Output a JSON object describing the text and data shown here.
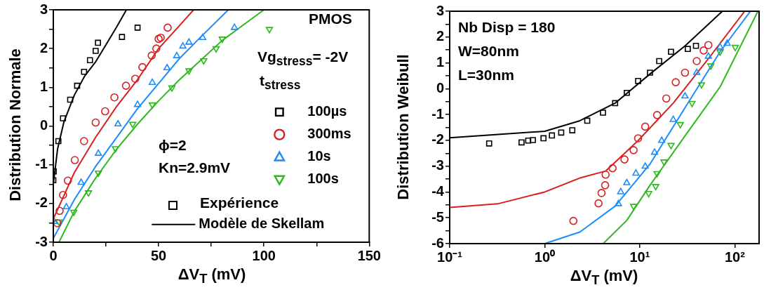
{
  "chart_data": [
    {
      "type": "scatter",
      "xlabel": "ΔV$_{T}$ (mV)",
      "ylabel": "Distribution Normale",
      "legend": "right",
      "legend_title": "t$_{stress}$",
      "annotations": [
        "PMOS",
        "Vg$_{stress}$= -2V",
        "ϕ=2",
        "Kn=2.9mV",
        "Expérience"
      ],
      "xlim": [
        0,
        150
      ],
      "ylim": [
        -3,
        3
      ],
      "xticks": [
        0,
        {
          "value": 25,
          "label": null
        },
        50,
        {
          "value": 75,
          "label": null
        },
        100,
        {
          "value": 125,
          "label": null
        },
        150
      ],
      "yticks": [
        -3,
        {
          "value": -2.5,
          "label": null
        },
        -2,
        {
          "value": -1.5,
          "label": null
        },
        -1,
        {
          "value": -0.5,
          "label": null
        },
        0,
        {
          "value": 0.5,
          "label": null
        },
        1,
        {
          "value": 1.5,
          "label": null
        },
        2,
        {
          "value": 2.5,
          "label": null
        },
        3
      ],
      "series": [
        {
          "name": "100µs",
          "type": "scatter",
          "marker": "square",
          "color": "#000000",
          "x": [
            0,
            0.2,
            2.4,
            4.6,
            8.0,
            11.3,
            14.6,
            17.4,
            20.1,
            21.2,
            32.6,
            40
          ],
          "values": [
            -1.4,
            -1.17,
            -0.39,
            0.2,
            0.68,
            1.04,
            1.4,
            1.7,
            1.94,
            2.15,
            2.3,
            2.54
          ]
        },
        {
          "name": "300ms",
          "type": "scatter",
          "marker": "circle",
          "color": "#d42020",
          "x": [
            1.9,
            3.0,
            4.6,
            6.9,
            10.2,
            14.6,
            20.1,
            24.6,
            29,
            34.5,
            38.9,
            42.3,
            46.7,
            48.9,
            50,
            51,
            54.3
          ],
          "values": [
            -2.51,
            -2.19,
            -1.78,
            -1.41,
            -0.88,
            -0.39,
            0.09,
            0.38,
            0.74,
            1.04,
            1.22,
            1.52,
            1.82,
            2.0,
            2.25,
            2.28,
            2.54
          ]
        },
        {
          "name": "10s",
          "type": "scatter",
          "marker": "triangle",
          "color": "#1a8cff",
          "x": [
            0.4,
            6.2,
            13.2,
            21.4,
            30.7,
            40,
            47,
            54,
            58.6,
            61.5,
            64.4,
            70.9,
            86
          ],
          "values": [
            -2.47,
            -2.09,
            -1.46,
            -0.71,
            0.05,
            0.55,
            1.12,
            1.5,
            1.81,
            2.06,
            2.16,
            2.28,
            2.54
          ]
        },
        {
          "name": "100s",
          "type": "scatter",
          "marker": "triangle-down",
          "color": "#2db81e",
          "x": [
            2.7,
            9.7,
            16.7,
            21.4,
            29.5,
            37.7,
            47,
            56.3,
            64.4,
            71.4,
            77.3,
            80.2,
            102.6
          ],
          "values": [
            -2.47,
            -2.22,
            -1.72,
            -1.21,
            -0.58,
            0.05,
            0.55,
            0.99,
            1.43,
            1.69,
            2.0,
            2.25,
            2.5
          ]
        },
        {
          "name": "Modèle de Skellam",
          "type": "line",
          "color": "#000000",
          "x": [
            0,
            2,
            5,
            10,
            15,
            20,
            25,
            30,
            34.7
          ],
          "values": [
            -1.5,
            -0.6,
            0.1,
            0.8,
            1.3,
            1.65,
            2.1,
            2.55,
            3
          ]
        },
        {
          "type": "line",
          "color": "#d42020",
          "x": [
            0,
            10,
            20,
            30,
            40,
            50,
            60,
            66.6
          ],
          "values": [
            -2.4,
            -1.2,
            -0.3,
            0.5,
            1.2,
            2.0,
            2.6,
            3
          ]
        },
        {
          "type": "line",
          "color": "#1a8cff",
          "x": [
            0,
            10,
            20,
            30,
            40,
            50,
            60,
            70,
            83.1
          ],
          "values": [
            -2.9,
            -1.9,
            -1.05,
            -0.3,
            0.45,
            1.1,
            1.75,
            2.3,
            3
          ]
        },
        {
          "type": "line",
          "color": "#2db81e",
          "x": [
            2.7,
            10,
            20,
            30,
            40,
            50,
            60,
            70,
            80,
            90,
            100
          ],
          "values": [
            -3,
            -2.2,
            -1.35,
            -0.6,
            0.05,
            0.65,
            1.2,
            1.7,
            2.2,
            2.6,
            3
          ]
        }
      ]
    },
    {
      "type": "scatter",
      "xlabel": "ΔV$_{T}$ (mV)",
      "ylabel": "Distribution Weibull",
      "log": "x",
      "annotations": [
        "Nb Disp = 180",
        "W=80nm",
        "L=30nm"
      ],
      "xlim": [
        0.1,
        180
      ],
      "ylim": [
        -6,
        3
      ],
      "xticks": [
        {
          "value": 0.1,
          "label": "10⁻¹"
        },
        {
          "value": 1,
          "label": "10⁰"
        },
        {
          "value": 10,
          "label": "10¹"
        },
        {
          "value": 100,
          "label": "10²"
        }
      ],
      "yticks": [
        -6,
        {
          "value": -5.5,
          "label": null
        },
        -5,
        {
          "value": -4.5,
          "label": null
        },
        -4,
        {
          "value": -3.5,
          "label": null
        },
        -3,
        {
          "value": -2.5,
          "label": null
        },
        -2,
        {
          "value": -1.5,
          "label": null
        },
        -1,
        {
          "value": -0.5,
          "label": null
        },
        0,
        {
          "value": 0.5,
          "label": null
        },
        1,
        {
          "value": 1.5,
          "label": null
        },
        2,
        {
          "value": 2.5,
          "label": null
        },
        3
      ],
      "series": [
        {
          "type": "scatter",
          "marker": "square",
          "color": "#000000",
          "x": [
            0.26,
            0.57,
            0.67,
            0.75,
            0.97,
            1.19,
            1.49,
            1.95,
            2.8,
            4.1,
            5.5,
            7.3,
            9.6,
            12.8,
            16,
            21.3,
            32,
            39
          ],
          "values": [
            -2.12,
            -2.08,
            -2.01,
            -1.99,
            -1.92,
            -1.81,
            -1.7,
            -1.61,
            -1.24,
            -0.93,
            -0.56,
            -0.16,
            0.3,
            0.62,
            1.07,
            1.43,
            1.54,
            1.66
          ]
        },
        {
          "type": "scatter",
          "marker": "circle",
          "color": "#d42020",
          "x": [
            2.0,
            3.68,
            3.96,
            4.32,
            4.37,
            5.17,
            6.9,
            8.6,
            9.6,
            11.4,
            15.2,
            19,
            23.9,
            29.9,
            39.7,
            47,
            52.7
          ],
          "values": [
            -5.12,
            -4.44,
            -4.04,
            -3.74,
            -3.33,
            -3.08,
            -2.74,
            -2.38,
            -1.92,
            -1.47,
            -1.02,
            -0.38,
            0.25,
            0.62,
            1.07,
            1.48,
            1.69
          ]
        },
        {
          "type": "scatter",
          "marker": "triangle",
          "color": "#1a8cff",
          "x": [
            5.96,
            6.3,
            7.3,
            9.1,
            11.4,
            14.3,
            17,
            22.5,
            29.9,
            39.7,
            52.7,
            70,
            83
          ],
          "values": [
            -4.46,
            -4.0,
            -3.65,
            -3.28,
            -3.01,
            -2.47,
            -2.01,
            -1.2,
            -0.29,
            0.62,
            1.25,
            1.61,
            1.75
          ]
        },
        {
          "type": "scatter",
          "marker": "triangle-down",
          "color": "#2db81e",
          "x": [
            8.6,
            12.4,
            14.7,
            15.2,
            18,
            21.3,
            26.7,
            35.5,
            44.6,
            55.9,
            70,
            101
          ],
          "values": [
            -4.55,
            -4.05,
            -3.78,
            -3.28,
            -2.83,
            -2.19,
            -1.38,
            -0.56,
            0.16,
            0.89,
            1.43,
            1.61
          ]
        },
        {
          "type": "line",
          "color": "#000000",
          "x": [
            0.1,
            1,
            2.34,
            5.5,
            12.8,
            30,
            74
          ],
          "values": [
            -1.9,
            -1.65,
            -1.24,
            -0.56,
            0.57,
            1.66,
            3
          ]
        },
        {
          "type": "line",
          "color": "#d42020",
          "x": [
            0.1,
            0.32,
            1,
            2.34,
            4.37,
            9.6,
            22.5,
            52.7,
            127
          ],
          "values": [
            -4.6,
            -4.46,
            -4.0,
            -3.46,
            -3.19,
            -2.01,
            -0.56,
            1.16,
            3
          ]
        },
        {
          "type": "line",
          "color": "#1a8cff",
          "x": [
            1,
            2.34,
            5.5,
            12.8,
            29.9,
            70,
            146
          ],
          "values": [
            -6,
            -5.55,
            -4.55,
            -2.92,
            -0.74,
            1.43,
            3
          ]
        },
        {
          "type": "line",
          "color": "#2db81e",
          "x": [
            4.12,
            7.3,
            12.8,
            29.9,
            70,
            175
          ],
          "values": [
            -6,
            -5.1,
            -3.74,
            -1.83,
            0.07,
            3
          ]
        }
      ]
    }
  ]
}
